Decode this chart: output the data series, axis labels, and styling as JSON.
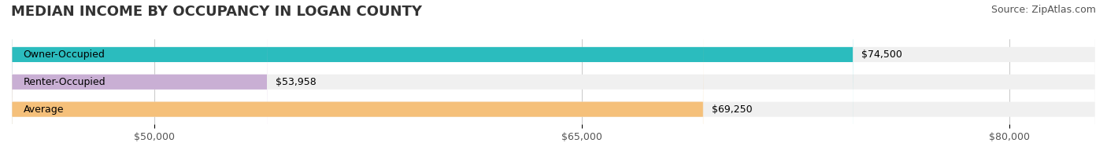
{
  "title": "MEDIAN INCOME BY OCCUPANCY IN LOGAN COUNTY",
  "source": "Source: ZipAtlas.com",
  "categories": [
    "Owner-Occupied",
    "Renter-Occupied",
    "Average"
  ],
  "values": [
    74500,
    53958,
    69250
  ],
  "labels": [
    "$74,500",
    "$53,958",
    "$69,250"
  ],
  "bar_colors": [
    "#2bbcbe",
    "#c9afd4",
    "#f5c07a"
  ],
  "bar_bg_color": "#f0f0f0",
  "xlim_min": 45000,
  "xlim_max": 83000,
  "xticks": [
    50000,
    65000,
    80000
  ],
  "xtick_labels": [
    "$50,000",
    "$65,000",
    "$80,000"
  ],
  "title_fontsize": 13,
  "source_fontsize": 9,
  "label_fontsize": 9,
  "cat_fontsize": 9,
  "bar_height": 0.55,
  "background_color": "#ffffff"
}
